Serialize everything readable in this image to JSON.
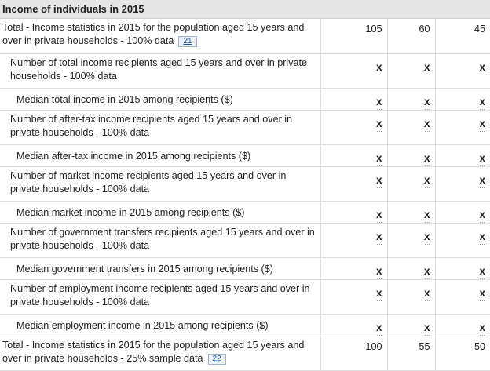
{
  "section_title": "Income of individuals in 2015",
  "rows": [
    {
      "label": "Total - Income statistics in 2015 for the population aged 15 years and over in private households - 100% data",
      "footnote": "21",
      "values": [
        "105",
        "60",
        "45"
      ]
    },
    {
      "label": "Number of total income recipients aged 15 years and over in private households - 100% data",
      "values": [
        "x",
        "x",
        "x"
      ]
    },
    {
      "label": "Median total income in 2015 among recipients ($)",
      "values": [
        "x",
        "x",
        "x"
      ]
    },
    {
      "label": "Number of after-tax income recipients aged 15 years and over in private households - 100% data",
      "values": [
        "x",
        "x",
        "x"
      ]
    },
    {
      "label": "Median after-tax income in 2015 among recipients ($)",
      "values": [
        "x",
        "x",
        "x"
      ]
    },
    {
      "label": "Number of market income recipients aged 15 years and over in private households - 100% data",
      "values": [
        "x",
        "x",
        "x"
      ]
    },
    {
      "label": "Median market income in 2015 among recipients ($)",
      "values": [
        "x",
        "x",
        "x"
      ]
    },
    {
      "label": "Number of government transfers recipients aged 15 years and over in private households - 100% data",
      "values": [
        "x",
        "x",
        "x"
      ]
    },
    {
      "label": "Median government transfers in 2015 among recipients ($)",
      "values": [
        "x",
        "x",
        "x"
      ]
    },
    {
      "label": "Number of employment income recipients aged 15 years and over in private households - 100% data",
      "values": [
        "x",
        "x",
        "x"
      ]
    },
    {
      "label": "Median employment income in 2015 among recipients ($)",
      "values": [
        "x",
        "x",
        "x"
      ]
    },
    {
      "label": "Total - Income statistics in 2015 for the population aged 15 years and over in private households - 25% sample data",
      "footnote": "22",
      "values": [
        "100",
        "55",
        "50"
      ]
    }
  ]
}
